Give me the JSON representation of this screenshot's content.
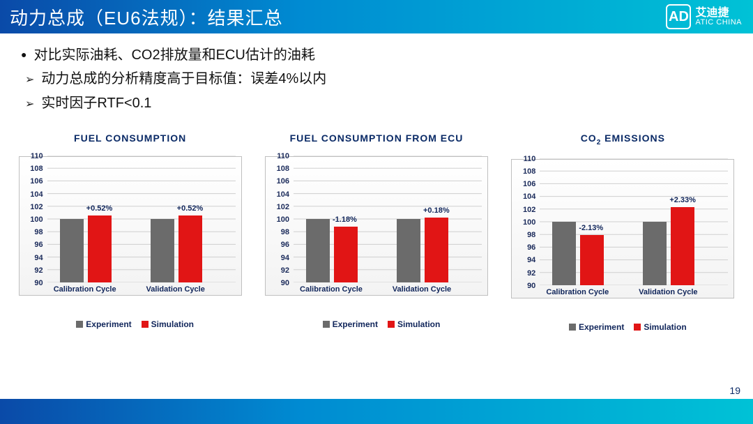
{
  "header": {
    "title": "动力总成（EU6法规）：结果汇总",
    "logo_cn": "艾迪捷",
    "logo_en": "ATIC CHINA",
    "logo_mark": "AD"
  },
  "bullets": {
    "b1": "对比实际油耗、CO2排放量和ECU估计的油耗",
    "b2": "动力总成的分析精度高于目标值：误差4%以内",
    "b3": "实时因子RTF<0.1"
  },
  "y_axis": {
    "min": 90,
    "max": 110,
    "step": 2,
    "ticks": [
      90,
      92,
      94,
      96,
      98,
      100,
      102,
      104,
      106,
      108,
      110
    ]
  },
  "x_categories": [
    "Calibration Cycle",
    "Validation Cycle"
  ],
  "legend": {
    "exp": "Experiment",
    "sim": "Simulation"
  },
  "colors": {
    "experiment": "#6b6b6b",
    "simulation": "#e11515",
    "title_text": "#0a2a66",
    "grid": "#cfcfcf",
    "plot_border": "#bfbfbf",
    "plot_bg_top": "#ffffff",
    "plot_bg_bottom": "#f3f3f3",
    "header_gradient": [
      "#0a4aa8",
      "#008bd2",
      "#00c2d6"
    ]
  },
  "charts": [
    {
      "title": "FUEL CONSUMPTION",
      "pairs": [
        {
          "cat": "Calibration Cycle",
          "experiment": 100.0,
          "simulation": 100.52,
          "ann": "+0.52%"
        },
        {
          "cat": "Validation Cycle",
          "experiment": 100.0,
          "simulation": 100.52,
          "ann": "+0.52%"
        }
      ]
    },
    {
      "title": "FUEL CONSUMPTION FROM ECU",
      "pairs": [
        {
          "cat": "Calibration Cycle",
          "experiment": 100.0,
          "simulation": 98.82,
          "ann": "-1.18%"
        },
        {
          "cat": "Validation Cycle",
          "experiment": 100.0,
          "simulation": 100.18,
          "ann": "+0.18%"
        }
      ]
    },
    {
      "title_html": "CO<sub>2</sub> EMISSIONS",
      "title": "CO2 EMISSIONS",
      "pairs": [
        {
          "cat": "Calibration Cycle",
          "experiment": 100.0,
          "simulation": 97.87,
          "ann": "-2.13%"
        },
        {
          "cat": "Validation Cycle",
          "experiment": 100.0,
          "simulation": 102.33,
          "ann": "+2.33%"
        }
      ]
    }
  ],
  "page_number": "19"
}
